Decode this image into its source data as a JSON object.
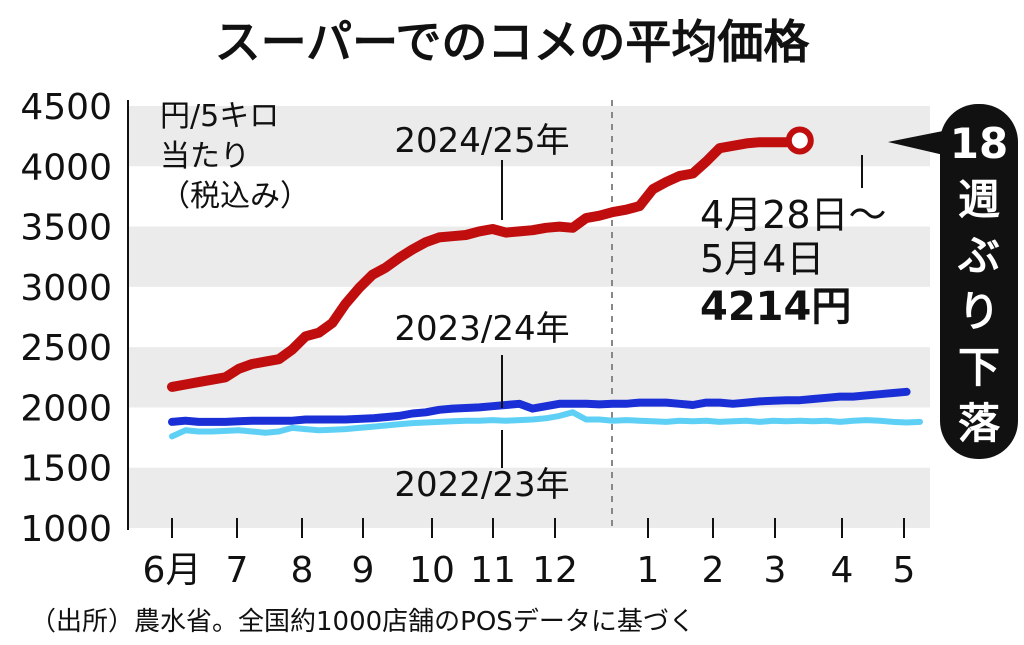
{
  "title": "スーパーでのコメの平均価格",
  "unit_lines": [
    "円/5キロ",
    "当たり",
    "（税込み）"
  ],
  "source": "（出所）農水省。全国約1000店舗のPOSデータに基づく",
  "callout": {
    "chars": [
      "18",
      "週",
      "ぶ",
      "り",
      "下",
      "落"
    ],
    "bg": "#111111"
  },
  "annotation": {
    "lines": [
      "4月28日～",
      "5月4日"
    ],
    "value": "4214円"
  },
  "colors": {
    "s2024": "#c00d0d",
    "s2023": "#1a2fd6",
    "s2022": "#5fd0f5",
    "band": "#ebebeb"
  },
  "chart_data": {
    "type": "line",
    "ylim": [
      1000,
      4500
    ],
    "yticks": [
      "1000",
      "1500",
      "2000",
      "2500",
      "3000",
      "3500",
      "4000",
      "4500"
    ],
    "xticks": [
      "6月",
      "7",
      "8",
      "9",
      "10",
      "11",
      "12",
      "1",
      "2",
      "3",
      "4",
      "5"
    ],
    "grid": "alternating horizontal bands",
    "series": [
      {
        "name": "2024/25年",
        "values": [
          2170,
          2190,
          2210,
          2230,
          2250,
          2320,
          2360,
          2380,
          2400,
          2480,
          2590,
          2620,
          2700,
          2860,
          2990,
          3100,
          3160,
          3240,
          3310,
          3370,
          3410,
          3420,
          3430,
          3460,
          3480,
          3450,
          3460,
          3470,
          3490,
          3500,
          3490,
          3570,
          3590,
          3620,
          3640,
          3670,
          3810,
          3870,
          3920,
          3940,
          4040,
          4150,
          4170,
          4190,
          4200,
          4200,
          4200,
          4214
        ],
        "end_marker": "circle"
      },
      {
        "name": "2023/24年",
        "values": [
          1880,
          1890,
          1880,
          1880,
          1880,
          1885,
          1890,
          1890,
          1890,
          1890,
          1900,
          1900,
          1900,
          1900,
          1905,
          1910,
          1920,
          1930,
          1950,
          1960,
          1980,
          1990,
          1995,
          2000,
          2010,
          2020,
          2030,
          1990,
          2010,
          2030,
          2030,
          2030,
          2025,
          2030,
          2030,
          2040,
          2040,
          2040,
          2030,
          2020,
          2040,
          2040,
          2030,
          2040,
          2050,
          2055,
          2060,
          2060,
          2070,
          2080,
          2090,
          2090,
          2100,
          2110,
          2120,
          2130
        ]
      },
      {
        "name": "2022/23年",
        "values": [
          1760,
          1810,
          1800,
          1800,
          1805,
          1810,
          1800,
          1790,
          1800,
          1830,
          1820,
          1810,
          1815,
          1820,
          1830,
          1840,
          1850,
          1860,
          1870,
          1875,
          1880,
          1885,
          1890,
          1890,
          1895,
          1890,
          1895,
          1900,
          1910,
          1930,
          1960,
          1900,
          1900,
          1890,
          1895,
          1890,
          1885,
          1880,
          1890,
          1885,
          1890,
          1880,
          1885,
          1890,
          1880,
          1890,
          1885,
          1890,
          1885,
          1890,
          1880,
          1890,
          1895,
          1890,
          1880,
          1875,
          1880
        ]
      }
    ]
  }
}
